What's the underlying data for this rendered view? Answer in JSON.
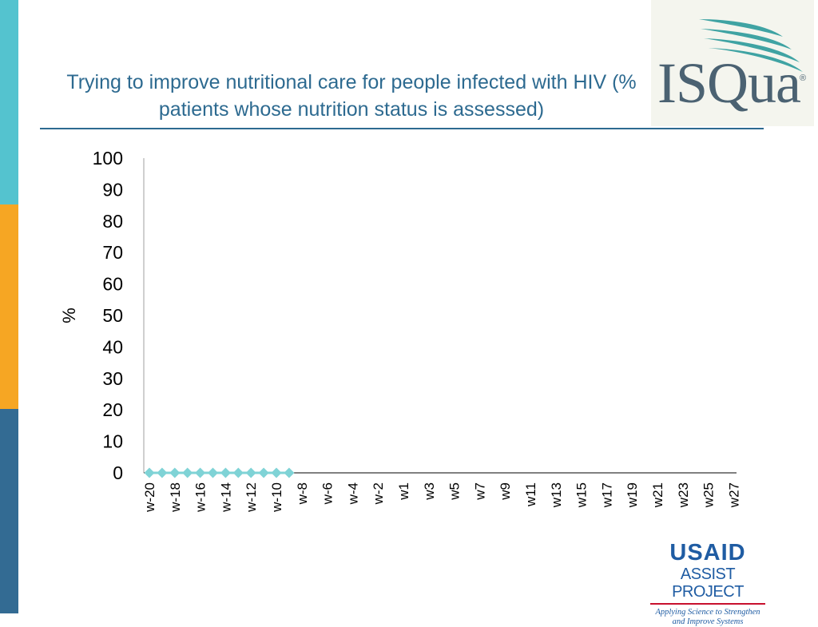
{
  "slide": {
    "title": "Trying to improve nutritional care for people infected with HIV (% patients whose nutrition status is assessed)"
  },
  "colors": {
    "sidebar_top": "#54c3cf",
    "sidebar_middle": "#f6a623",
    "sidebar_bottom": "#336b93",
    "title_text": "#2d6a90",
    "title_rule": "#2d6a90",
    "isqua_text": "#4b6272",
    "isqua_swoosh": "#3fa3a3",
    "usaid_blue": "#1f5ca3",
    "usaid_red": "#c8102e",
    "series_marker": "#7fd3d6",
    "axis": "#bfbfbf",
    "tick_text": "#000000"
  },
  "logos": {
    "isqua": {
      "text": "ISQua",
      "reg_mark": "®",
      "icon": "swoosh-wing-icon"
    },
    "usaid": {
      "line1": "USAID",
      "line2": "ASSIST PROJECT",
      "line3a": "Applying Science to Strengthen",
      "line3b": "and Improve Systems"
    }
  },
  "chart_data": {
    "type": "line",
    "title": "",
    "xlabel": "",
    "ylabel": "%",
    "ylim": [
      0,
      100
    ],
    "yticks": [
      0,
      10,
      20,
      30,
      40,
      50,
      60,
      70,
      80,
      90,
      100
    ],
    "grid": false,
    "categories": [
      "w-20",
      "w-19",
      "w-18",
      "w-17",
      "w-16",
      "w-15",
      "w-14",
      "w-13",
      "w-12",
      "w-11",
      "w-10",
      "w-9",
      "w-8",
      "w-7",
      "w-6",
      "w-5",
      "w-4",
      "w-3",
      "w-2",
      "w-1",
      "w1",
      "w2",
      "w3",
      "w4",
      "w5",
      "w6",
      "w7",
      "w8",
      "w9",
      "w10",
      "w11",
      "w12",
      "w13",
      "w14",
      "w15",
      "w16",
      "w17",
      "w18",
      "w19",
      "w20",
      "w21",
      "w22",
      "w23",
      "w24",
      "w25",
      "w26",
      "w27"
    ],
    "tick_labels_shown": [
      "w-20",
      "w-18",
      "w-16",
      "w-14",
      "w-12",
      "w-10",
      "w-8",
      "w-6",
      "w-4",
      "w-2",
      "w1",
      "w3",
      "w5",
      "w7",
      "w9",
      "w11",
      "w13",
      "w15",
      "w17",
      "w19",
      "w21",
      "w23",
      "w25",
      "w27"
    ],
    "series": [
      {
        "marker": "diamond",
        "values": [
          0,
          0,
          0,
          0,
          0,
          0,
          0,
          0,
          0,
          0,
          0,
          0,
          null,
          null,
          null,
          null,
          null,
          null,
          null,
          null,
          null,
          null,
          null,
          null,
          null,
          null,
          null,
          null,
          null,
          null,
          null,
          null,
          null,
          null,
          null,
          null,
          null,
          null,
          null,
          null,
          null,
          null,
          null,
          null,
          null,
          null,
          null
        ]
      }
    ]
  }
}
